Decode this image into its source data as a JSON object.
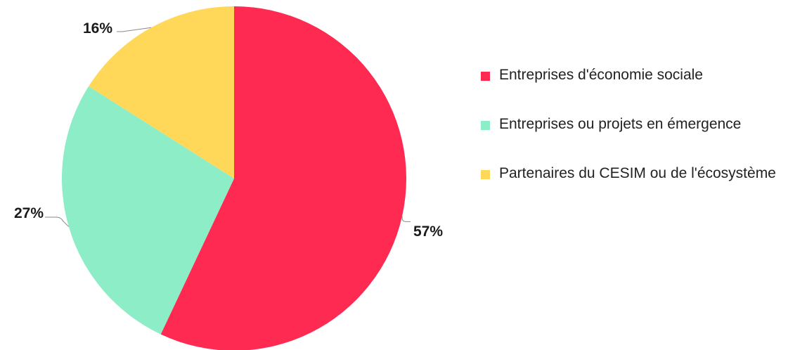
{
  "chart_data": {
    "type": "pie",
    "title": "",
    "legend_position": "right",
    "slices": [
      {
        "label": "Entreprises d'économie sociale",
        "value": 57,
        "display": "57%",
        "color": "#FF2A52"
      },
      {
        "label": "Entreprises ou projets en émergence",
        "value": 27,
        "display": "27%",
        "color": "#8CEDC6"
      },
      {
        "label": "Partenaires du CESIM ou de l'écosystème",
        "value": 16,
        "display": "16%",
        "color": "#FFD85A"
      }
    ]
  }
}
